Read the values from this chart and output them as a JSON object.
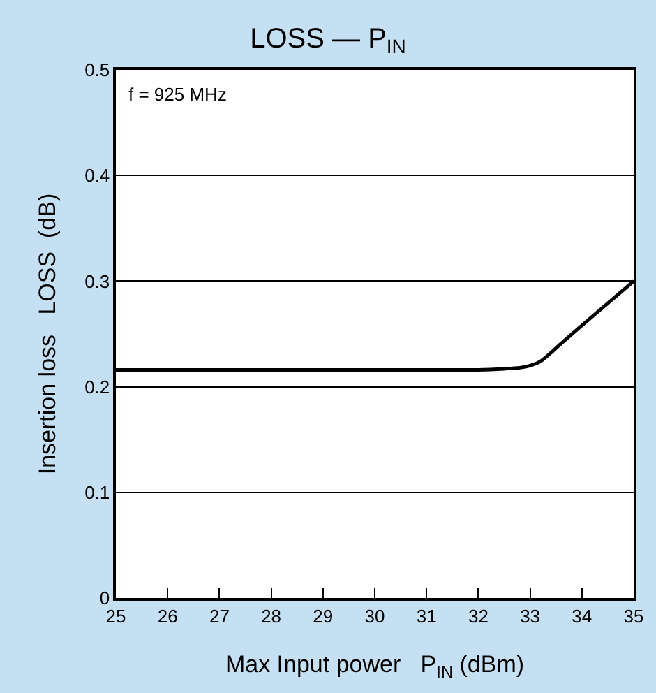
{
  "chart_data": {
    "type": "line",
    "title": "LOSS — P$_{IN}$",
    "xlabel": "Max Input power   P$_{IN}$ (dBm)",
    "ylabel": "Insertion loss   LOSS  (dB)",
    "annotations": [
      "f = 925 MHz"
    ],
    "series": [
      {
        "color": "#000000",
        "x": [
          25,
          27,
          29,
          31,
          32,
          32.5,
          32.8,
          33,
          33.2,
          33.4,
          33.6,
          34,
          34.5,
          35
        ],
        "values": [
          0.216,
          0.216,
          0.216,
          0.216,
          0.216,
          0.217,
          0.218,
          0.22,
          0.224,
          0.232,
          0.241,
          0.258,
          0.279,
          0.3
        ]
      }
    ],
    "xlim": [
      25,
      35
    ],
    "xticks": [
      25,
      26,
      27,
      28,
      29,
      30,
      31,
      32,
      33,
      34,
      35
    ],
    "ylim": [
      0,
      0.5
    ],
    "yticks": [
      0,
      0.1,
      0.2,
      0.3,
      0.4,
      0.5
    ],
    "grid": "y",
    "legend": false,
    "marker": "none",
    "line_style": "solid"
  }
}
